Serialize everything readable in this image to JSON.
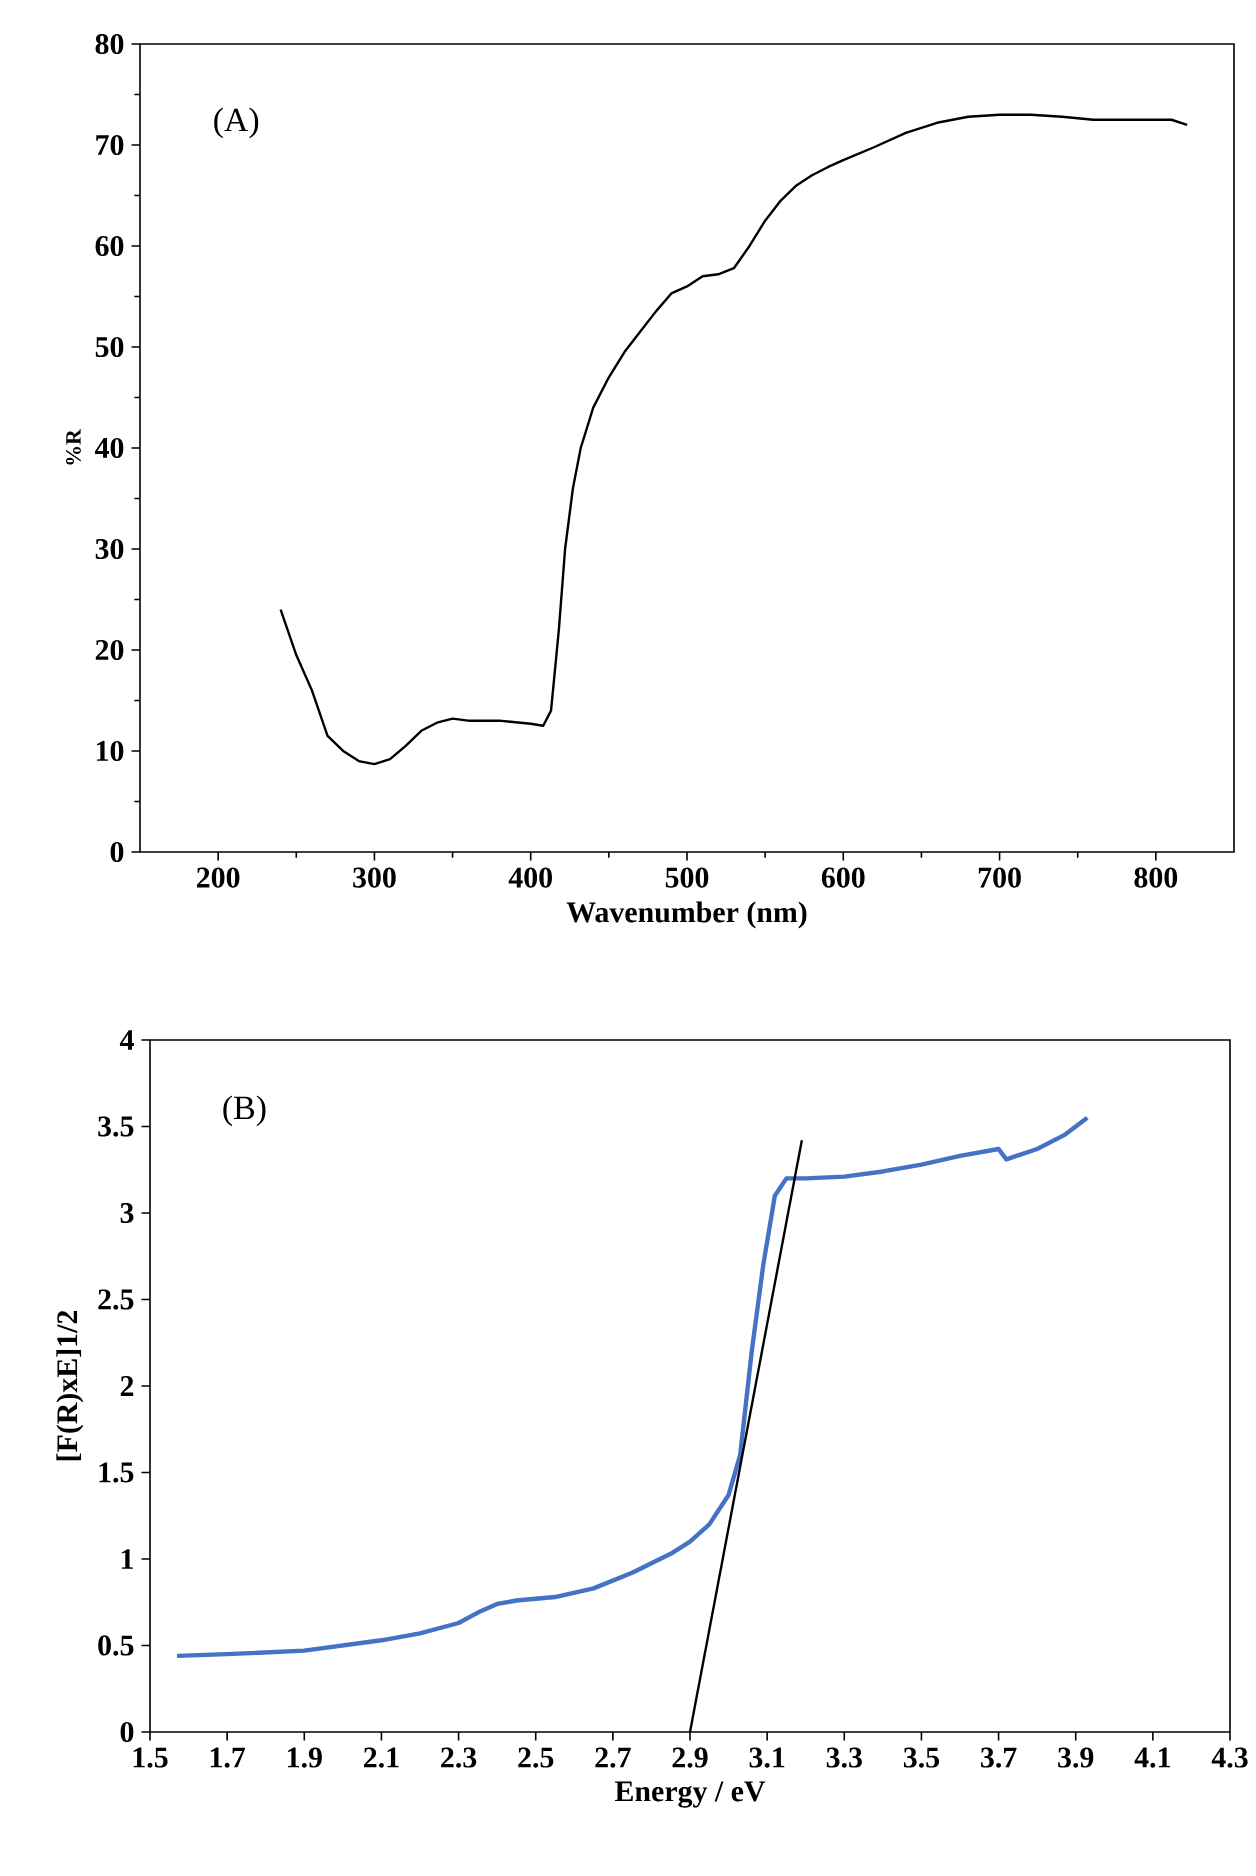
{
  "chart_data": [
    {
      "type": "line",
      "xlabel": "Wavenumber (nm)",
      "ylabel": "%R",
      "xlim": [
        150,
        850
      ],
      "ylim": [
        0,
        80
      ],
      "xticks": [
        200,
        300,
        400,
        500,
        600,
        700,
        800
      ],
      "yticks": [
        0,
        10,
        20,
        30,
        40,
        50,
        60,
        70,
        80
      ],
      "annotations": [
        "(A)"
      ],
      "series": [
        {
          "color": "#000000",
          "x": [
            240,
            250,
            260,
            270,
            280,
            290,
            300,
            310,
            320,
            330,
            340,
            350,
            360,
            380,
            400,
            408,
            413,
            418,
            422,
            427,
            432,
            440,
            450,
            460,
            470,
            480,
            490,
            500,
            510,
            520,
            530,
            540,
            550,
            560,
            570,
            580,
            590,
            600,
            620,
            640,
            660,
            680,
            700,
            720,
            740,
            760,
            780,
            800,
            810,
            820
          ],
          "values": [
            24,
            19.5,
            16,
            11.5,
            10,
            9,
            8.7,
            9.2,
            10.5,
            12,
            12.8,
            13.2,
            13,
            13,
            12.7,
            12.5,
            14,
            22,
            30,
            36,
            40,
            44,
            47,
            49.5,
            51.5,
            53.5,
            55.3,
            56,
            57,
            57.2,
            57.8,
            60,
            62.5,
            64.5,
            66,
            67,
            67.8,
            68.5,
            69.8,
            71.2,
            72.2,
            72.8,
            73,
            73,
            72.8,
            72.5,
            72.5,
            72.5,
            72.5,
            72
          ]
        }
      ]
    },
    {
      "type": "line",
      "xlabel": "Energy / eV",
      "ylabel": "[F(R)xE]1/2",
      "xlim": [
        1.5,
        4.3
      ],
      "ylim": [
        0,
        4
      ],
      "xticks": [
        1.5,
        1.7,
        1.9,
        2.1,
        2.3,
        2.5,
        2.7,
        2.9,
        3.1,
        3.3,
        3.5,
        3.7,
        3.9,
        4.1,
        4.3
      ],
      "yticks": [
        0,
        0.5,
        1,
        1.5,
        2,
        2.5,
        3,
        3.5,
        4
      ],
      "annotations": [
        "(B)"
      ],
      "series": [
        {
          "color": "#4472c4",
          "x": [
            1.57,
            1.7,
            1.9,
            2.1,
            2.2,
            2.3,
            2.35,
            2.4,
            2.45,
            2.55,
            2.65,
            2.75,
            2.85,
            2.9,
            2.95,
            3.0,
            3.03,
            3.06,
            3.09,
            3.12,
            3.15,
            3.2,
            3.3,
            3.4,
            3.5,
            3.6,
            3.7,
            3.72,
            3.8,
            3.87,
            3.93
          ],
          "values": [
            0.44,
            0.45,
            0.47,
            0.53,
            0.57,
            0.63,
            0.69,
            0.74,
            0.76,
            0.78,
            0.83,
            0.92,
            1.03,
            1.1,
            1.2,
            1.37,
            1.6,
            2.2,
            2.7,
            3.1,
            3.2,
            3.2,
            3.21,
            3.24,
            3.28,
            3.33,
            3.37,
            3.31,
            3.37,
            3.45,
            3.55
          ]
        },
        {
          "type": "line",
          "color": "#000000",
          "x": [
            2.9,
            3.19
          ],
          "values": [
            0,
            3.42
          ]
        }
      ]
    }
  ]
}
